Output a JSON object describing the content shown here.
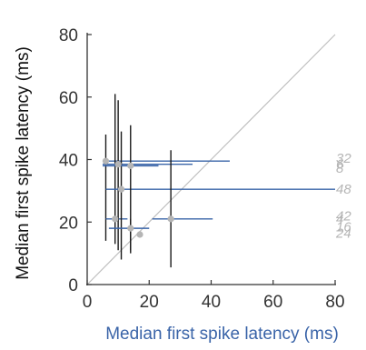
{
  "chart_data": {
    "type": "scatter",
    "title": "",
    "xlabel": "Median first spike latency (ms)",
    "ylabel": "Median first spike latency (ms)",
    "xlim": [
      0,
      80
    ],
    "ylim": [
      0,
      80
    ],
    "xticks": [
      "0",
      "20",
      "40",
      "60",
      "80"
    ],
    "yticks": [
      "0",
      "20",
      "40",
      "60",
      "80"
    ],
    "grid": false,
    "reference_line": "identity (y = x)",
    "colors": {
      "axis": "#333333",
      "xlabel": "#3a64a8",
      "ylabel": "#111111",
      "horizontal_error": "#3a64a8",
      "vertical_error": "#1a1a1a",
      "points": "#b5b5b5",
      "identity": "#bfbfbf",
      "side_labels": "#b5b5b5"
    },
    "points": [
      {
        "x": 6,
        "y": 39.5,
        "x_err": [
          5,
          46
        ],
        "y_err": [
          14,
          48
        ]
      },
      {
        "x": 9,
        "y": 21,
        "x_err": [
          6,
          13
        ],
        "y_err": [
          13,
          61
        ]
      },
      {
        "x": 10,
        "y": 38.5,
        "x_err": [
          5,
          34
        ],
        "y_err": [
          11,
          59
        ]
      },
      {
        "x": 11,
        "y": 30.5,
        "x_err": [
          6,
          80
        ],
        "y_err": [
          8,
          49
        ]
      },
      {
        "x": 14,
        "y": 38,
        "x_err": [
          5,
          23
        ],
        "y_err": [
          10,
          51
        ]
      },
      {
        "x": 14,
        "y": 18,
        "x_err": [
          7,
          20
        ],
        "y_err": [
          11,
          21
        ]
      },
      {
        "x": 27,
        "y": 21,
        "x_err": [
          21,
          40.5
        ],
        "y_err": [
          5.5,
          43
        ]
      },
      {
        "x": 17,
        "y": 16,
        "x_err": [
          17,
          17
        ],
        "y_err": [
          16,
          16
        ]
      }
    ],
    "side_labels": [
      {
        "text": "32",
        "y": 40.5
      },
      {
        "text": "6",
        "y": 38.5
      },
      {
        "text": "8",
        "y": 37.3
      },
      {
        "text": "48",
        "y": 30.5
      },
      {
        "text": "42",
        "y": 22
      },
      {
        "text": "4",
        "y": 21
      },
      {
        "text": "16",
        "y": 18.5
      },
      {
        "text": "24",
        "y": 16.5
      }
    ]
  }
}
